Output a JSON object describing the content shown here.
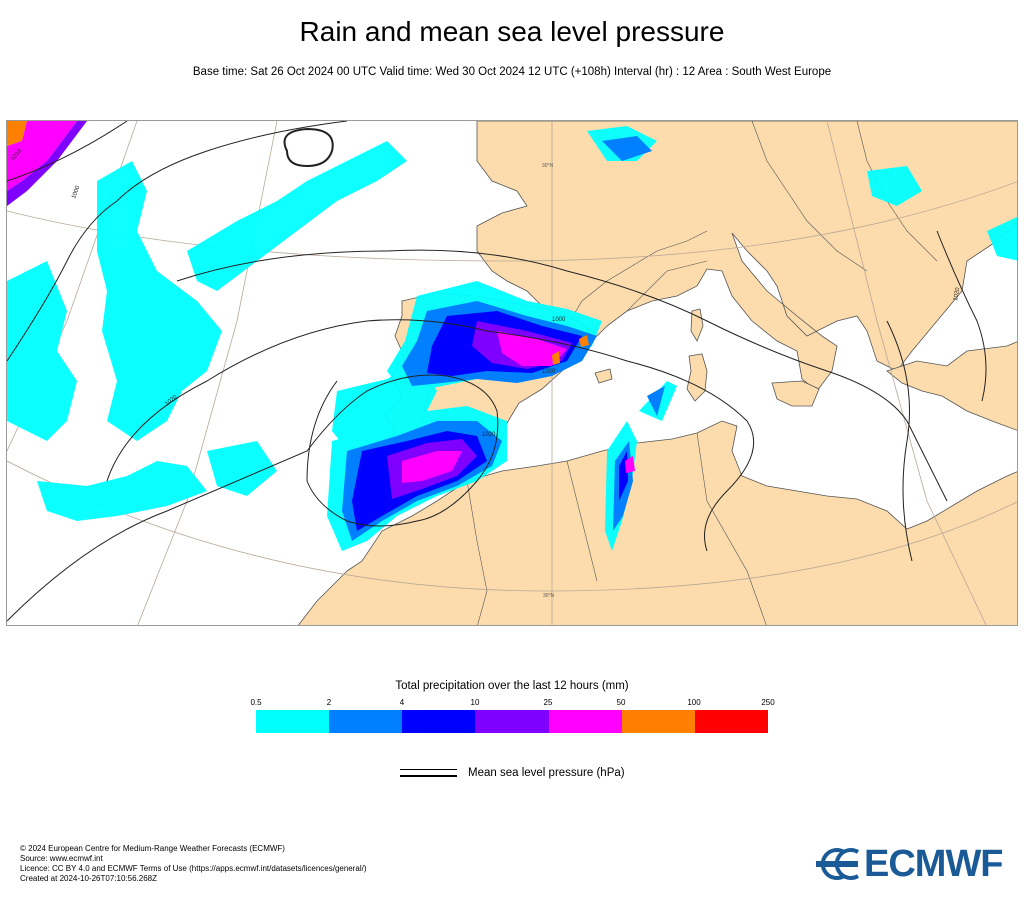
{
  "title": "Rain and mean sea level pressure",
  "subtitle": "Base time: Sat 26 Oct 2024 00 UTC Valid time: Wed 30 Oct 2024 12 UTC (+108h) Interval (hr) : 12 Area : South West Europe",
  "map": {
    "isobar_labels": [
      "1010",
      "1000",
      "1020",
      "1000",
      "1020",
      "1020",
      "1020"
    ],
    "graticule_labels": [
      "30°N",
      "30°N"
    ],
    "colors": {
      "land": "#fcdcac",
      "sea": "#ffffff",
      "borders": "#555555",
      "isobars": "#222222"
    }
  },
  "legend": {
    "title": "Total precipitation over the last 12 hours (mm)",
    "ticks": [
      "0.5",
      "2",
      "4",
      "10",
      "25",
      "50",
      "100",
      "250"
    ],
    "colors": [
      "#00ffff",
      "#0080ff",
      "#0000ff",
      "#8000ff",
      "#ff00ff",
      "#ff8000",
      "#ff0000"
    ],
    "mslp_label": "Mean sea level pressure (hPa)"
  },
  "footer": {
    "lines": [
      "© 2024 European Centre for Medium-Range Weather Forecasts (ECMWF)",
      "Source: www.ecmwf.int",
      "Licence: CC BY 4.0 and ECMWF Terms of Use (https://apps.ecmwf.int/datasets/licences/general/)",
      "Created at 2024-10-26T07:10:56.268Z"
    ]
  },
  "logo": {
    "text": "ECMWF",
    "color": "#1a5a96"
  }
}
